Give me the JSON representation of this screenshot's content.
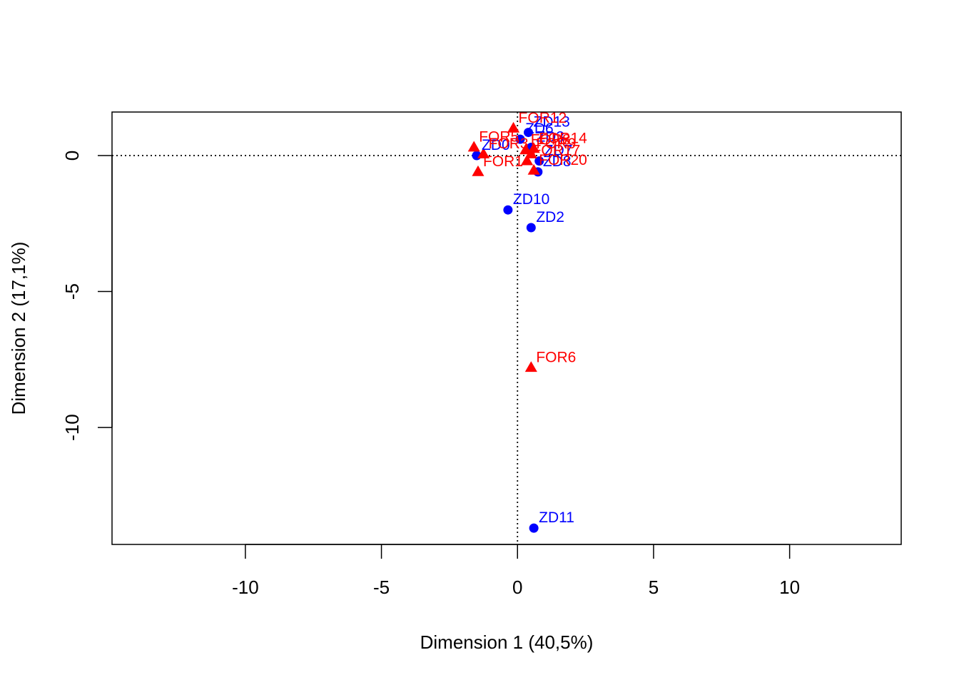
{
  "chart_data": {
    "type": "scatter",
    "title": "",
    "xlabel": "Dimension 1 (40,5%)",
    "ylabel": "Dimension 2 (17,1%)",
    "xlim": [
      -14.9,
      14.1
    ],
    "ylim": [
      -14.3,
      1.6
    ],
    "x_ticks": [
      -10,
      -5,
      0,
      5,
      10
    ],
    "x_tick_labels": [
      "-10",
      "-5",
      "0",
      "5",
      "10"
    ],
    "y_ticks": [
      -10,
      -5,
      0
    ],
    "y_tick_labels": [
      "-10",
      "-5",
      "0"
    ],
    "reference_lines": {
      "x": 0,
      "y": 0,
      "style": "dotted"
    },
    "series": [
      {
        "name": "ZD",
        "color": "#0000ff",
        "marker": "circle",
        "points": [
          {
            "label": "ZD11",
            "x": 0.6,
            "y": -13.7
          },
          {
            "label": "ZD2",
            "x": 0.5,
            "y": -2.65
          },
          {
            "label": "ZD10",
            "x": -0.35,
            "y": -2.0
          },
          {
            "label": "ZD13",
            "x": 0.4,
            "y": 0.85
          },
          {
            "label": "ZD6",
            "x": 0.1,
            "y": 0.6
          },
          {
            "label": "ZD8",
            "x": 0.75,
            "y": -0.6
          },
          {
            "label": "ZD7",
            "x": 0.8,
            "y": -0.2
          },
          {
            "label": "ZD0",
            "x": -1.5,
            "y": 0.0
          },
          {
            "label": "ZD3",
            "x": 0.5,
            "y": 0.3
          }
        ]
      },
      {
        "name": "FOR",
        "color": "#ff0000",
        "marker": "triangle",
        "points": [
          {
            "label": "FOR6",
            "x": 0.5,
            "y": -7.8
          },
          {
            "label": "FOR12",
            "x": -0.15,
            "y": 1.0
          },
          {
            "label": "FOR1",
            "x": -1.45,
            "y": -0.6
          },
          {
            "label": "FOR20",
            "x": 0.6,
            "y": -0.55
          },
          {
            "label": "FOR5",
            "x": -1.6,
            "y": 0.3
          },
          {
            "label": "FOR3",
            "x": -1.25,
            "y": 0.05
          },
          {
            "label": "FOR8",
            "x": 0.3,
            "y": 0.2
          },
          {
            "label": "FOR14",
            "x": 0.6,
            "y": 0.25
          },
          {
            "label": "FOR17",
            "x": 0.35,
            "y": -0.2
          },
          {
            "label": "FOR9",
            "x": 0.5,
            "y": 0.05
          }
        ]
      }
    ]
  }
}
